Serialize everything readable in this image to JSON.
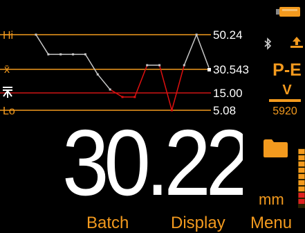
{
  "status": {
    "battery_icon": "battery-icon",
    "bluetooth_icon": "bluetooth-icon"
  },
  "chart_labels": {
    "hi": "Hi",
    "mean": "x̄",
    "limit": "",
    "lo": "Lo"
  },
  "reference_values": {
    "hi": "50.24",
    "mean": "30.543",
    "limit": "15.00",
    "lo": "5.08"
  },
  "probe": {
    "type": "P-E",
    "mode": "V",
    "velocity": "5920"
  },
  "reading": {
    "value": "30.22",
    "unit": "mm"
  },
  "softkeys": {
    "left": "Batch",
    "middle": "Display",
    "right": "Menu"
  },
  "colors": {
    "accent": "#f39a1e",
    "trend_line": "#c8c8c8",
    "below_limit": "#e01010",
    "limit_line": "#d01515",
    "background": "#000000"
  },
  "chart_data": {
    "type": "line",
    "series": [
      {
        "values": [
          50.24,
          38.5,
          38.5,
          38.5,
          38.5,
          26.5,
          17.5,
          13.0,
          13.0,
          32.0,
          32.0,
          5.08,
          32.0,
          50.24,
          30.543
        ]
      }
    ],
    "reference_lines": [
      {
        "label": "Hi",
        "value": 50.24
      },
      {
        "label": "x̄",
        "value": 30.543
      },
      {
        "value": 15.0
      },
      {
        "label": "Lo",
        "value": 5.08
      }
    ],
    "below_limit_color": "#e01010",
    "ylim": [
      5.08,
      50.24
    ]
  }
}
